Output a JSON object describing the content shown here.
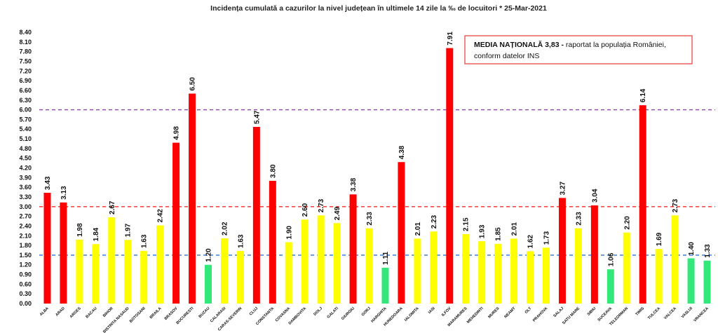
{
  "chart_data": {
    "type": "bar",
    "title": "Incidența cumulată a cazurilor la nivel județean în ultimele 14 zile   la ‰ de locuitori  * 25-Mar-2021",
    "xlabel": "",
    "ylabel": "",
    "ylim": [
      0,
      8.4
    ],
    "yticks": [
      0.0,
      0.3,
      0.6,
      0.9,
      1.2,
      1.5,
      1.8,
      2.1,
      2.4,
      2.7,
      3.0,
      3.3,
      3.6,
      3.9,
      4.2,
      4.5,
      4.8,
      5.1,
      5.4,
      5.7,
      6.0,
      6.3,
      6.6,
      6.9,
      7.2,
      7.5,
      7.8,
      8.1,
      8.4
    ],
    "yticklabels": [
      "0.00",
      "0.30",
      "0.60",
      "0.90",
      "1.20",
      "1.50",
      "1.80",
      "2.10",
      "2.40",
      "2.70",
      "3.00",
      "3.30",
      "3.60",
      "3.90",
      "4.20",
      "4.50",
      "4.80",
      "5.10",
      "5.40",
      "5.70",
      "6.00",
      "6.30",
      "6.60",
      "6.90",
      "7.20",
      "7.50",
      "7.80",
      "8.10",
      "8.40"
    ],
    "grid": false,
    "categories": [
      "ALBA",
      "ARAD",
      "ARGES",
      "BACAU",
      "BIHOR",
      "BISTRITA NASAUD",
      "BOTOSANI",
      "BRAILA",
      "BRASOV",
      "BUCURESTI",
      "BUZAU",
      "CALARASI",
      "CARAS-SEVERIN",
      "CLUJ",
      "CONSTANTA",
      "COVASNA",
      "DAMBOVITA",
      "DOLJ",
      "GALATI",
      "GIURGIU",
      "GORJ",
      "HARGHITA",
      "HUNEDOARA",
      "IALOMITA",
      "IASI",
      "ILFOV",
      "MARAMURES",
      "MEHEDINTI",
      "MURES",
      "NEAMT",
      "OLT",
      "PRAHOVA",
      "SALAJ",
      "SATU MARE",
      "SIBIU",
      "SUCEAVA",
      "TELEORMAN",
      "TIMIS",
      "TULCEA",
      "VALCEA",
      "VASLUI",
      "VRANCEA"
    ],
    "values": [
      3.43,
      3.13,
      1.98,
      1.84,
      2.67,
      1.97,
      1.63,
      2.42,
      4.98,
      6.5,
      1.2,
      2.02,
      1.63,
      5.47,
      3.8,
      1.9,
      2.6,
      2.73,
      2.49,
      3.38,
      2.33,
      1.11,
      4.38,
      2.01,
      2.23,
      7.91,
      2.15,
      1.93,
      1.85,
      2.01,
      1.62,
      1.73,
      3.27,
      2.33,
      3.04,
      1.06,
      2.2,
      6.14,
      1.69,
      2.73,
      1.4,
      1.33
    ],
    "value_labels": [
      "3.43",
      "3.13",
      "1.98",
      "1.84",
      "2.67",
      "1.97",
      "1.63",
      "2.42",
      "4.98",
      "6.50",
      "1.20",
      "2.02",
      "1.63",
      "5.47",
      "3.80",
      "1.90",
      "2.60",
      "2.73",
      "2.49",
      "3.38",
      "2.33",
      "1.11",
      "4.38",
      "2.01",
      "2.23",
      "7.91",
      "2.15",
      "1.93",
      "1.85",
      "2.01",
      "1.62",
      "1.73",
      "3.27",
      "2.33",
      "3.04",
      "1.06",
      "2.20",
      "6.14",
      "1.69",
      "2.73",
      "1.40",
      "1.33"
    ],
    "reference_lines": [
      {
        "value": 6.0,
        "color": "#8e44ad"
      },
      {
        "value": 3.0,
        "color": "#ff2a2a"
      },
      {
        "value": 1.5,
        "color": "#2e75d6"
      }
    ],
    "color_rules": {
      "red": "#ff0000",
      "yellow": "#ffff00",
      "green": "#33e87a"
    }
  },
  "annotation": {
    "bold": "MEDIA NAȚIONALĂ 3,83 -",
    "rest_line1": " raportat la populația României,",
    "line2": "conform datelor INS"
  }
}
